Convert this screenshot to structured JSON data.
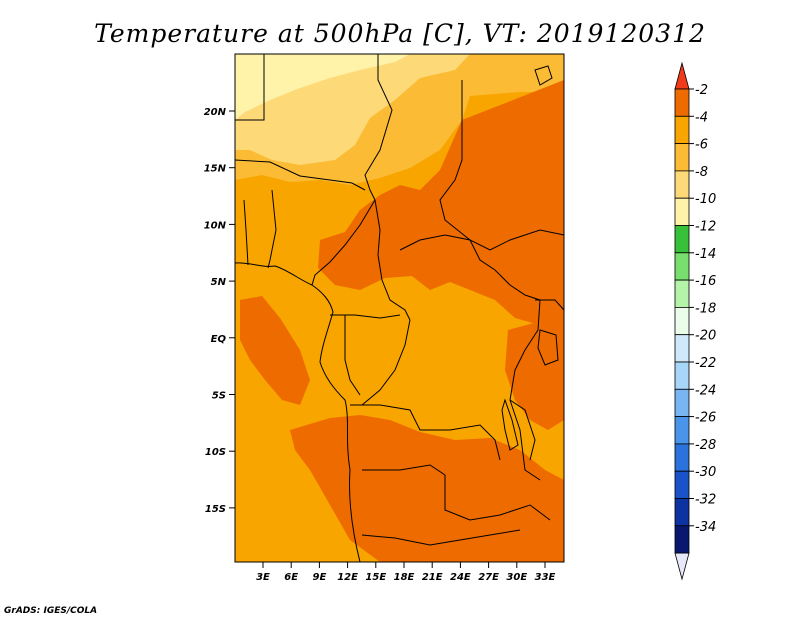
{
  "title": "Temperature at 500hPa [C], VT: 2019120312",
  "credit": "GrADS: IGES/COLA",
  "map": {
    "lat_ticks": [
      "20N",
      "15N",
      "10N",
      "5N",
      "EQ",
      "5S",
      "10S",
      "15S"
    ],
    "lon_ticks": [
      "3E",
      "6E",
      "9E",
      "12E",
      "15E",
      "18E",
      "21E",
      "24E",
      "27E",
      "30E",
      "33E"
    ],
    "colors": {
      "deep": "#ee6b00",
      "main": "#f9a500",
      "light": "#fbbb34",
      "pale": "#fdd978",
      "palest": "#fff3a9"
    }
  },
  "colorbar": {
    "labels": [
      "-2",
      "-4",
      "-6",
      "-8",
      "-10",
      "-12",
      "-14",
      "-16",
      "-18",
      "-20",
      "-22",
      "-24",
      "-26",
      "-28",
      "-30",
      "-32",
      "-34"
    ],
    "top_triangle_color": "#f03a1a",
    "colors": [
      "#ee6b00",
      "#f9a500",
      "#fbbb34",
      "#fdd978",
      "#fff3a9",
      "#37c03a",
      "#78de6e",
      "#b4f4a8",
      "#eafdea",
      "#cfe9fb",
      "#a8d6f8",
      "#77b5f3",
      "#4b94ec",
      "#2b72dd",
      "#1a53c9",
      "#0d33a2",
      "#0a1770"
    ],
    "bottom_triangle_color": "#e7e9fb"
  }
}
